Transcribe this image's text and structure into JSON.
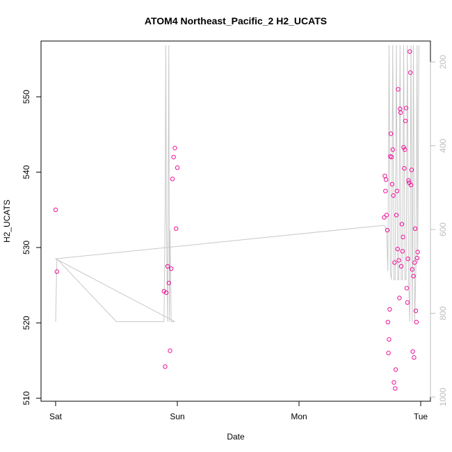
{
  "chart_data": {
    "type": "scatter",
    "title": "ATOM4 Northeast_Pacific_2 H2_UCATS",
    "xlabel": "Date",
    "ylabel": "H2_UCATS",
    "x_ticks": [
      {
        "day": 0,
        "label": "Sat"
      },
      {
        "day": 1,
        "label": "Sun"
      },
      {
        "day": 2,
        "label": "Mon"
      },
      {
        "day": 3,
        "label": "Tue"
      }
    ],
    "xlim_days": [
      -0.12,
      3.08
    ],
    "ylim": [
      509.6,
      557.4
    ],
    "y_ticks": [
      510,
      520,
      530,
      540,
      550
    ],
    "y2_ticks": [
      200,
      400,
      600,
      800,
      1000
    ],
    "y2lim": [
      1010,
      150
    ],
    "grid": false,
    "colors": {
      "points": "#ee1199",
      "line": "#c8c8c8",
      "axis": "#000000",
      "right_axis": "#bdbdbd"
    },
    "series": [
      {
        "points": [
          [
            0.0,
            535.0
          ],
          [
            0.01,
            526.8
          ],
          [
            0.89,
            524.2
          ],
          [
            0.9,
            514.2
          ],
          [
            0.91,
            524.0
          ],
          [
            0.92,
            527.5
          ],
          [
            0.93,
            525.3
          ],
          [
            0.94,
            516.3
          ],
          [
            0.95,
            527.2
          ],
          [
            0.96,
            539.1
          ],
          [
            0.97,
            542.0
          ],
          [
            0.98,
            543.2
          ],
          [
            0.99,
            532.5
          ],
          [
            1.0,
            540.6
          ],
          [
            2.7,
            534.0
          ],
          [
            2.705,
            539.5
          ],
          [
            2.71,
            537.5
          ],
          [
            2.715,
            539.0
          ],
          [
            2.72,
            534.3
          ],
          [
            2.725,
            532.3
          ],
          [
            2.73,
            520.1
          ],
          [
            2.735,
            516.0
          ],
          [
            2.74,
            517.8
          ],
          [
            2.745,
            521.8
          ],
          [
            2.75,
            542.1
          ],
          [
            2.755,
            545.1
          ],
          [
            2.76,
            542.0
          ],
          [
            2.765,
            538.4
          ],
          [
            2.77,
            543.0
          ],
          [
            2.775,
            536.9
          ],
          [
            2.78,
            512.1
          ],
          [
            2.785,
            528.0
          ],
          [
            2.79,
            511.3
          ],
          [
            2.795,
            513.8
          ],
          [
            2.8,
            534.3
          ],
          [
            2.805,
            537.5
          ],
          [
            2.81,
            529.8
          ],
          [
            2.815,
            551.0
          ],
          [
            2.82,
            528.3
          ],
          [
            2.825,
            523.3
          ],
          [
            2.83,
            548.4
          ],
          [
            2.835,
            547.9
          ],
          [
            2.84,
            527.5
          ],
          [
            2.845,
            533.1
          ],
          [
            2.85,
            529.5
          ],
          [
            2.855,
            531.4
          ],
          [
            2.86,
            543.3
          ],
          [
            2.865,
            540.5
          ],
          [
            2.87,
            543.0
          ],
          [
            2.875,
            546.8
          ],
          [
            2.88,
            548.5
          ],
          [
            2.885,
            524.6
          ],
          [
            2.89,
            522.7
          ],
          [
            2.895,
            528.5
          ],
          [
            2.9,
            538.9
          ],
          [
            2.905,
            538.6
          ],
          [
            2.91,
            556.0
          ],
          [
            2.915,
            553.2
          ],
          [
            2.92,
            538.3
          ],
          [
            2.925,
            540.3
          ],
          [
            2.93,
            527.1
          ],
          [
            2.935,
            516.2
          ],
          [
            2.94,
            526.2
          ],
          [
            2.945,
            515.4
          ],
          [
            2.95,
            528.0
          ],
          [
            2.955,
            532.5
          ],
          [
            2.96,
            521.6
          ],
          [
            2.965,
            520.1
          ],
          [
            2.97,
            528.6
          ],
          [
            2.975,
            529.4
          ]
        ]
      },
      {
        "axis": "right",
        "points": [
          [
            0.0,
            820
          ],
          [
            0.01,
            670
          ],
          [
            0.5,
            820
          ],
          [
            0.89,
            820
          ],
          [
            0.9,
            560
          ],
          [
            0.905,
            160
          ],
          [
            0.91,
            560
          ],
          [
            0.92,
            820
          ],
          [
            0.93,
            160
          ],
          [
            0.935,
            820
          ],
          [
            0.94,
            600
          ],
          [
            0.95,
            820
          ],
          [
            0.98,
            820
          ],
          [
            0.0,
            670
          ],
          [
            2.7,
            590
          ],
          [
            2.72,
            600
          ],
          [
            2.73,
            700
          ],
          [
            2.74,
            160
          ],
          [
            2.75,
            700
          ],
          [
            2.76,
            720
          ],
          [
            2.77,
            160
          ],
          [
            2.78,
            720
          ],
          [
            2.79,
            720
          ],
          [
            2.8,
            160
          ],
          [
            2.81,
            720
          ],
          [
            2.82,
            720
          ],
          [
            2.83,
            160
          ],
          [
            2.84,
            720
          ],
          [
            2.85,
            720
          ],
          [
            2.86,
            160
          ],
          [
            2.87,
            720
          ],
          [
            2.88,
            720
          ],
          [
            2.89,
            160
          ],
          [
            2.9,
            720
          ],
          [
            2.91,
            820
          ],
          [
            2.92,
            160
          ],
          [
            2.93,
            820
          ],
          [
            2.94,
            160
          ],
          [
            2.95,
            820
          ],
          [
            2.96,
            700
          ],
          [
            2.97,
            160
          ],
          [
            2.975,
            680
          ],
          [
            2.98,
            450
          ],
          [
            2.985,
            160
          ]
        ]
      }
    ]
  }
}
